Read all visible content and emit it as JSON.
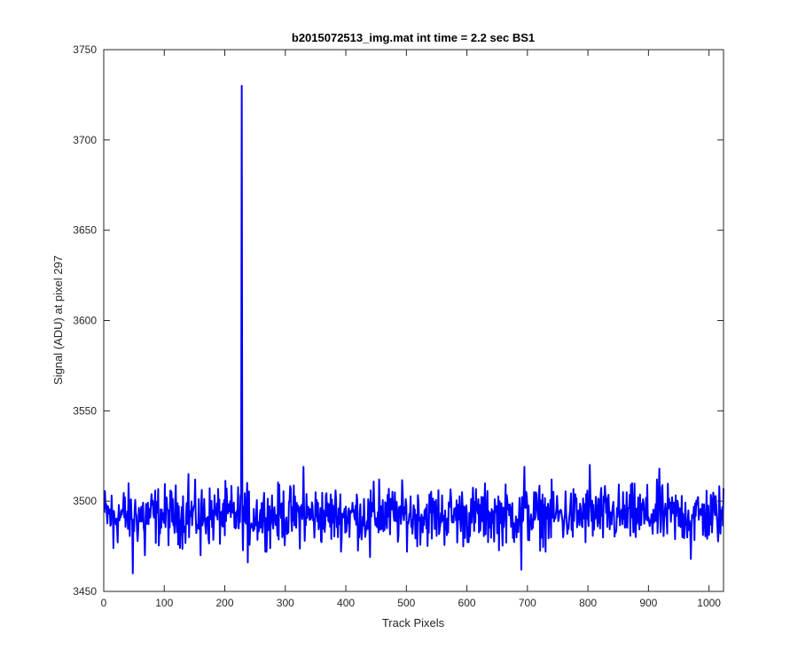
{
  "chart_data": {
    "type": "line",
    "title": "b2015072513_img.mat int time = 2.2 sec   BS1",
    "xlabel": "Track Pixels",
    "ylabel": "Signal (ADU) at pixel 297",
    "xlim": [
      0,
      1024
    ],
    "ylim": [
      3450,
      3750
    ],
    "xticks": [
      0,
      100,
      200,
      300,
      400,
      500,
      600,
      700,
      800,
      900,
      1000
    ],
    "yticks": [
      3450,
      3500,
      3550,
      3600,
      3650,
      3700,
      3750
    ],
    "grid": false,
    "line_color": "#0000ff",
    "series": [
      {
        "x_start": 1,
        "x_step": 1,
        "baseline": 3492,
        "noise_amplitude": 8,
        "spikes": [
          {
            "x": 16,
            "y": 3474
          },
          {
            "x": 48,
            "y": 3460
          },
          {
            "x": 68,
            "y": 3470
          },
          {
            "x": 140,
            "y": 3515
          },
          {
            "x": 160,
            "y": 3470
          },
          {
            "x": 228,
            "y": 3730
          },
          {
            "x": 238,
            "y": 3466
          },
          {
            "x": 330,
            "y": 3519
          },
          {
            "x": 440,
            "y": 3469
          },
          {
            "x": 455,
            "y": 3512
          },
          {
            "x": 690,
            "y": 3462
          },
          {
            "x": 695,
            "y": 3519
          },
          {
            "x": 803,
            "y": 3520
          },
          {
            "x": 918,
            "y": 3518
          },
          {
            "x": 970,
            "y": 3468
          }
        ]
      }
    ]
  }
}
